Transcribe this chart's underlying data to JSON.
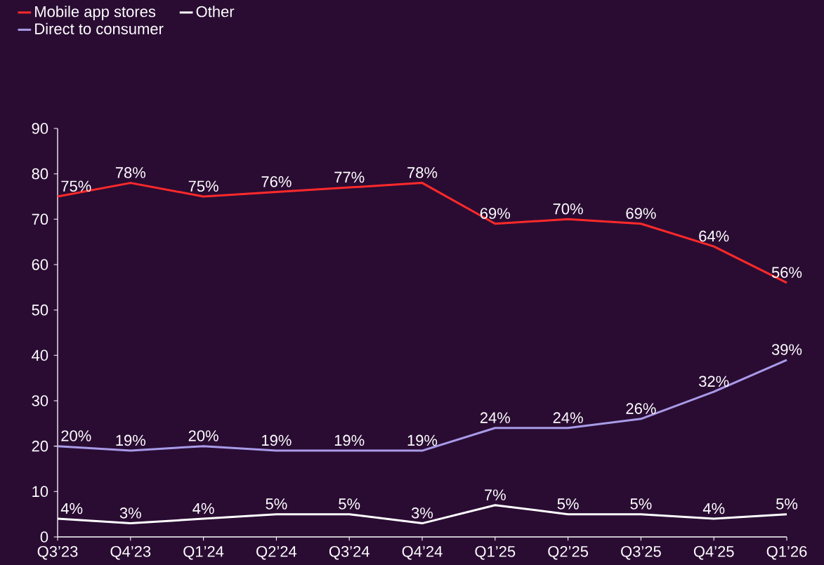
{
  "chart_data": {
    "type": "line",
    "categories": [
      "Q3’23",
      "Q4’23",
      "Q1’24",
      "Q2’24",
      "Q3’24",
      "Q4’24",
      "Q1’25",
      "Q2’25",
      "Q3’25",
      "Q4’25",
      "Q1’26"
    ],
    "series": [
      {
        "name": "Mobile app stores",
        "color": "#ff2a2a",
        "values": [
          75,
          78,
          75,
          76,
          77,
          78,
          69,
          70,
          69,
          64,
          56
        ],
        "value_labels": [
          "75%",
          "78%",
          "75%",
          "76%",
          "77%",
          "78%",
          "69%",
          "70%",
          "69%",
          "64%",
          "56%"
        ]
      },
      {
        "name": "Other",
        "color": "#ffffff",
        "values": [
          4,
          3,
          4,
          5,
          5,
          3,
          7,
          5,
          5,
          4,
          5
        ],
        "value_labels": [
          "4%",
          "3%",
          "4%",
          "5%",
          "5%",
          "3%",
          "7%",
          "5%",
          "5%",
          "4%",
          "5%"
        ]
      },
      {
        "name": "Direct to consumer",
        "color": "#a99be8",
        "values": [
          20,
          19,
          20,
          19,
          19,
          19,
          24,
          24,
          26,
          32,
          39
        ],
        "value_labels": [
          "20%",
          "19%",
          "20%",
          "19%",
          "19%",
          "19%",
          "24%",
          "24%",
          "26%",
          "32%",
          "39%"
        ]
      }
    ],
    "ylim": [
      0,
      90
    ],
    "yticks": [
      0,
      10,
      20,
      30,
      40,
      50,
      60,
      70,
      80,
      90
    ],
    "grid": false,
    "legend": "top left",
    "line_style": "solid"
  }
}
